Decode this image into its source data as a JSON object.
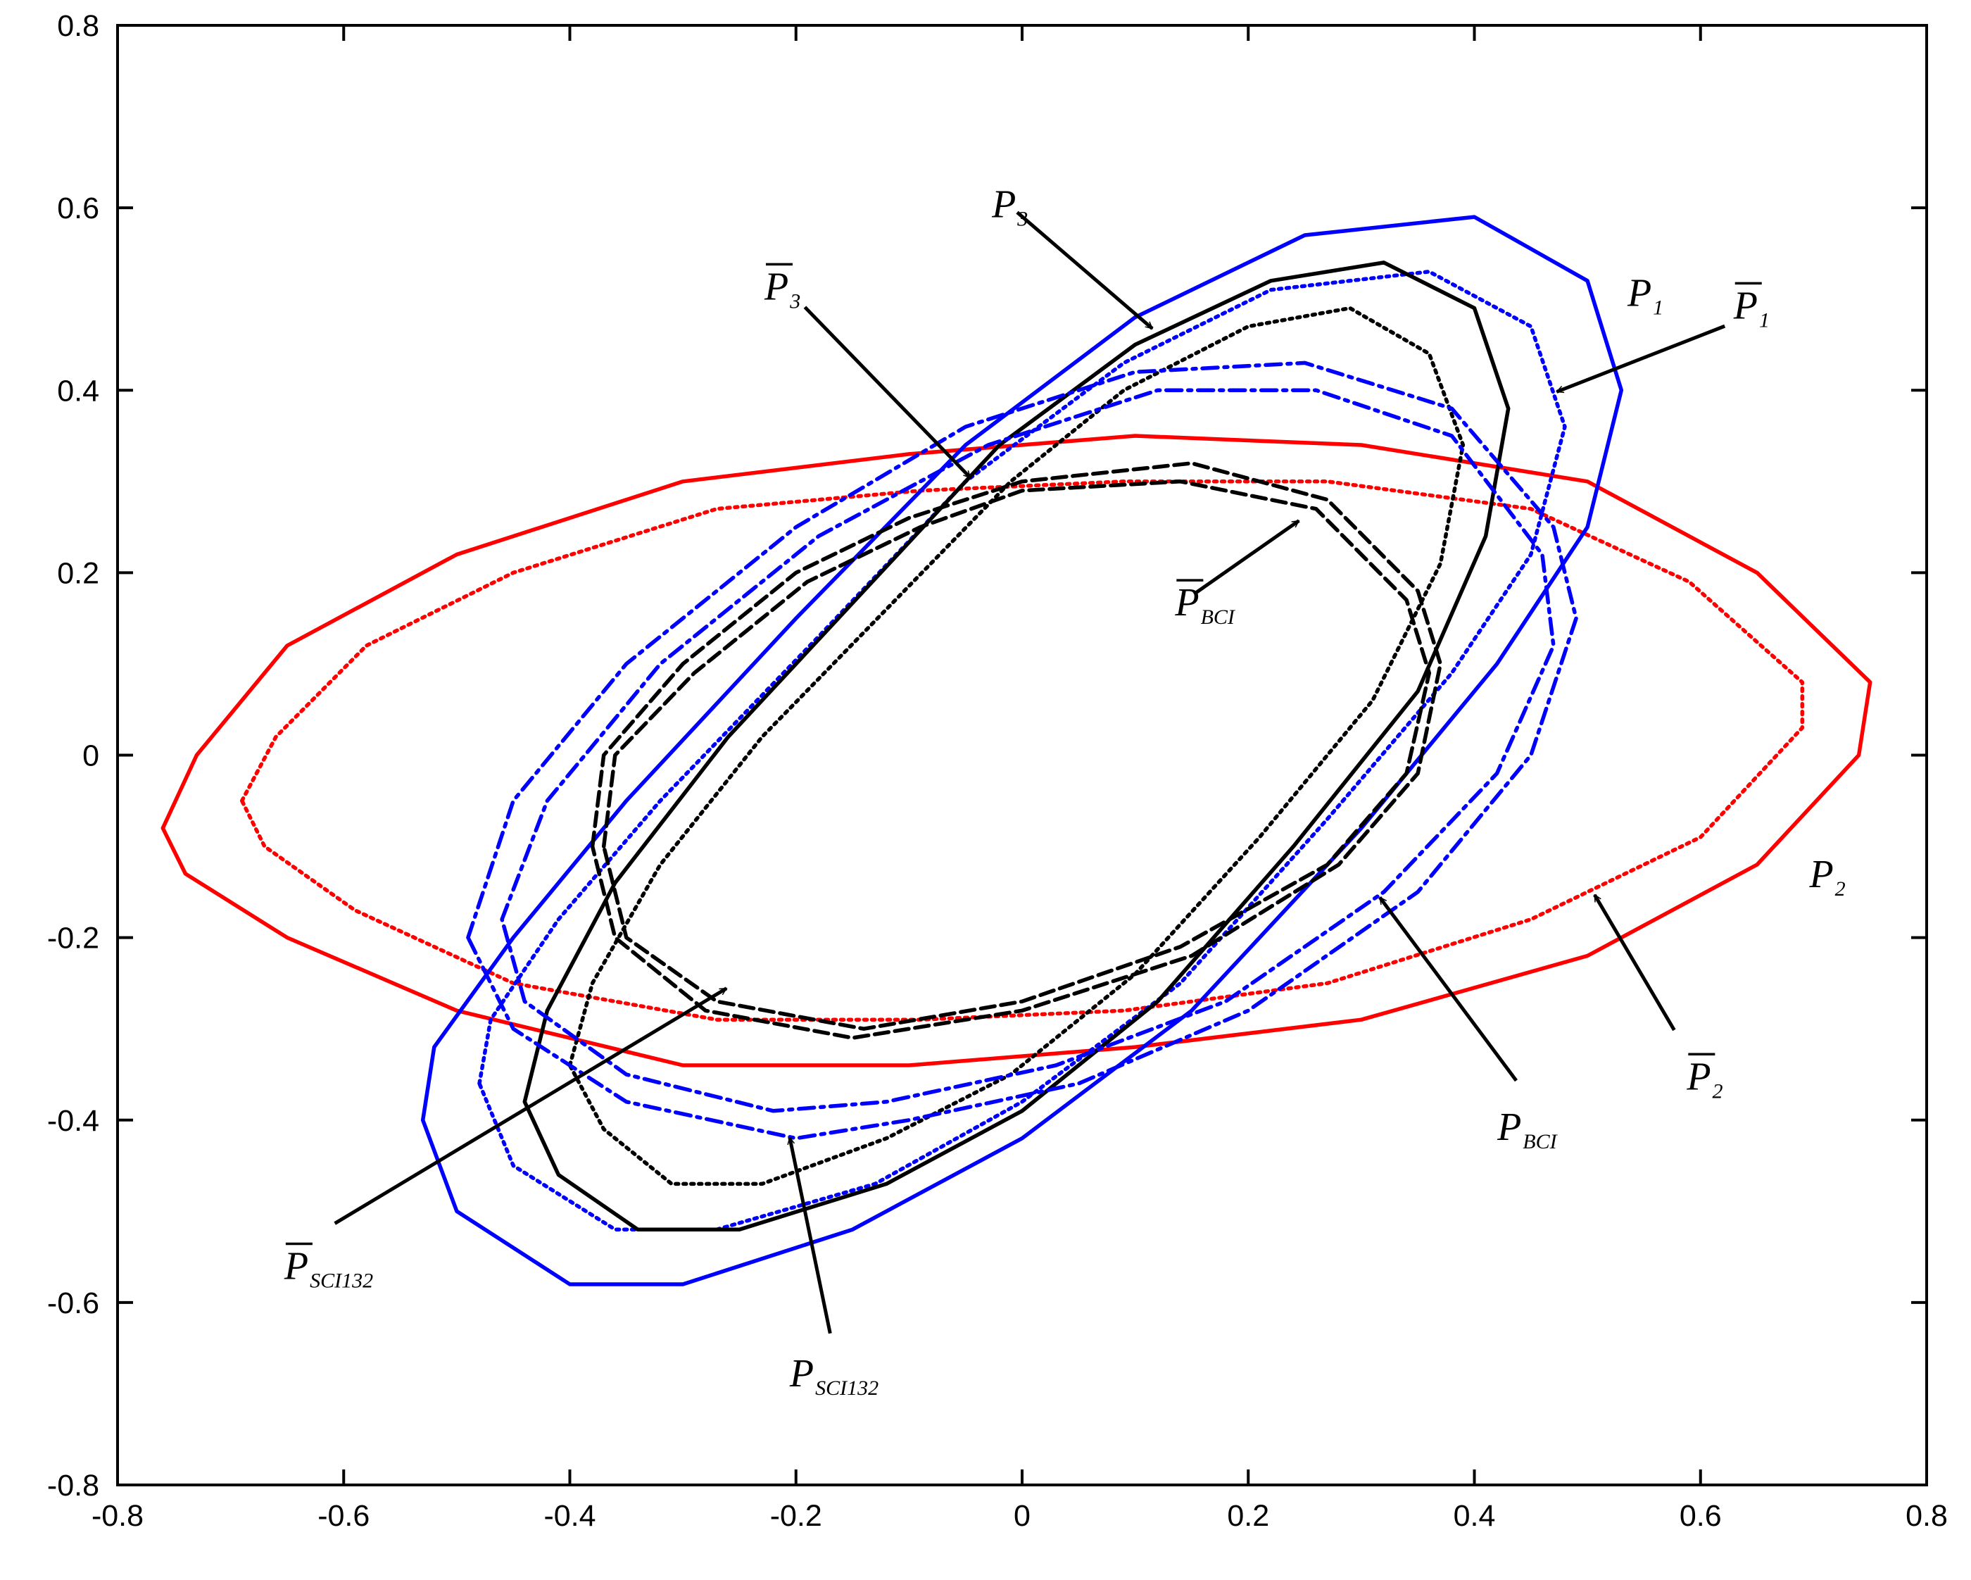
{
  "chart_data": {
    "type": "line",
    "xlim": [
      -0.8,
      0.8
    ],
    "ylim": [
      -0.8,
      0.8
    ],
    "xticks": [
      -0.8,
      -0.6,
      -0.4,
      -0.2,
      0,
      0.2,
      0.4,
      0.6,
      0.8
    ],
    "yticks": [
      -0.8,
      -0.6,
      -0.4,
      -0.2,
      0,
      0.2,
      0.4,
      0.6,
      0.8
    ],
    "grid": false,
    "series": [
      {
        "color": "#ff0000",
        "dash": "solid",
        "x": [
          -0.76,
          -0.73,
          -0.65,
          -0.5,
          -0.3,
          -0.1,
          0.1,
          0.3,
          0.5,
          0.65,
          0.75,
          0.74,
          0.65,
          0.5,
          0.3,
          0.1,
          -0.1,
          -0.3,
          -0.5,
          -0.65,
          -0.74,
          -0.76
        ],
        "y": [
          -0.08,
          0.0,
          0.12,
          0.22,
          0.3,
          0.33,
          0.35,
          0.34,
          0.3,
          0.2,
          0.08,
          0.0,
          -0.12,
          -0.22,
          -0.29,
          -0.32,
          -0.34,
          -0.34,
          -0.28,
          -0.2,
          -0.13,
          -0.08
        ]
      },
      {
        "color": "#ff0000",
        "dash": "dotted",
        "x": [
          -0.69,
          -0.66,
          -0.58,
          -0.45,
          -0.27,
          -0.09,
          0.09,
          0.27,
          0.45,
          0.59,
          0.69,
          0.69,
          0.6,
          0.45,
          0.27,
          0.09,
          -0.09,
          -0.27,
          -0.45,
          -0.59,
          -0.67,
          -0.69
        ],
        "y": [
          -0.05,
          0.02,
          0.12,
          0.2,
          0.27,
          0.29,
          0.3,
          0.3,
          0.27,
          0.19,
          0.08,
          0.03,
          -0.09,
          -0.18,
          -0.25,
          -0.28,
          -0.29,
          -0.29,
          -0.25,
          -0.17,
          -0.1,
          -0.05
        ]
      },
      {
        "color": "#0000ff",
        "dash": "solid",
        "x": [
          -0.53,
          -0.52,
          -0.45,
          -0.35,
          -0.2,
          -0.05,
          0.1,
          0.25,
          0.4,
          0.5,
          0.53,
          0.5,
          0.42,
          0.3,
          0.15,
          0.0,
          -0.15,
          -0.3,
          -0.4,
          -0.5,
          -0.53
        ],
        "y": [
          -0.4,
          -0.32,
          -0.2,
          -0.05,
          0.15,
          0.34,
          0.48,
          0.57,
          0.59,
          0.52,
          0.4,
          0.25,
          0.1,
          -0.08,
          -0.28,
          -0.42,
          -0.52,
          -0.58,
          -0.58,
          -0.5,
          -0.4
        ]
      },
      {
        "color": "#0000ff",
        "dash": "dotted",
        "x": [
          -0.48,
          -0.47,
          -0.41,
          -0.32,
          -0.18,
          -0.05,
          0.09,
          0.22,
          0.36,
          0.45,
          0.48,
          0.45,
          0.38,
          0.27,
          0.14,
          0.0,
          -0.13,
          -0.27,
          -0.36,
          -0.45,
          -0.48
        ],
        "y": [
          -0.36,
          -0.29,
          -0.18,
          -0.05,
          0.13,
          0.3,
          0.43,
          0.51,
          0.53,
          0.47,
          0.36,
          0.22,
          0.09,
          -0.07,
          -0.25,
          -0.38,
          -0.47,
          -0.52,
          -0.52,
          -0.45,
          -0.36
        ]
      },
      {
        "color": "#000000",
        "dash": "solid",
        "x": [
          -0.44,
          -0.42,
          -0.36,
          -0.26,
          -0.14,
          -0.02,
          0.1,
          0.22,
          0.32,
          0.4,
          0.43,
          0.41,
          0.35,
          0.24,
          0.12,
          0.0,
          -0.12,
          -0.25,
          -0.34,
          -0.41,
          -0.44
        ],
        "y": [
          -0.38,
          -0.28,
          -0.14,
          0.02,
          0.18,
          0.34,
          0.45,
          0.52,
          0.54,
          0.49,
          0.38,
          0.24,
          0.07,
          -0.1,
          -0.27,
          -0.39,
          -0.47,
          -0.52,
          -0.52,
          -0.46,
          -0.38
        ]
      },
      {
        "color": "#000000",
        "dash": "dotted",
        "x": [
          -0.4,
          -0.38,
          -0.32,
          -0.23,
          -0.12,
          -0.01,
          0.09,
          0.2,
          0.29,
          0.36,
          0.39,
          0.37,
          0.31,
          0.21,
          0.1,
          -0.01,
          -0.12,
          -0.23,
          -0.31,
          -0.37,
          -0.4
        ],
        "y": [
          -0.34,
          -0.25,
          -0.12,
          0.02,
          0.16,
          0.3,
          0.4,
          0.47,
          0.49,
          0.44,
          0.34,
          0.21,
          0.06,
          -0.09,
          -0.24,
          -0.35,
          -0.42,
          -0.47,
          -0.47,
          -0.41,
          -0.34
        ]
      },
      {
        "color": "#0000ff",
        "dash": "dashdot",
        "x": [
          -0.49,
          -0.45,
          -0.35,
          -0.2,
          -0.05,
          0.1,
          0.25,
          0.38,
          0.47,
          0.49,
          0.45,
          0.35,
          0.2,
          0.05,
          -0.1,
          -0.2,
          -0.35,
          -0.45,
          -0.49
        ],
        "y": [
          -0.2,
          -0.05,
          0.1,
          0.25,
          0.36,
          0.42,
          0.43,
          0.38,
          0.25,
          0.15,
          0.0,
          -0.15,
          -0.28,
          -0.36,
          -0.4,
          -0.42,
          -0.38,
          -0.3,
          -0.2
        ]
      },
      {
        "color": "#0000ff",
        "dash": "dashdot",
        "x": [
          -0.46,
          -0.42,
          -0.32,
          -0.18,
          -0.03,
          0.12,
          0.26,
          0.38,
          0.46,
          0.47,
          0.42,
          0.32,
          0.18,
          0.03,
          -0.12,
          -0.22,
          -0.35,
          -0.44,
          -0.46
        ],
        "y": [
          -0.18,
          -0.05,
          0.1,
          0.24,
          0.34,
          0.4,
          0.4,
          0.35,
          0.22,
          0.12,
          -0.02,
          -0.15,
          -0.27,
          -0.34,
          -0.38,
          -0.39,
          -0.35,
          -0.27,
          -0.18
        ]
      },
      {
        "color": "#000000",
        "dash": "dashed",
        "x": [
          -0.38,
          -0.37,
          -0.3,
          -0.2,
          -0.1,
          0.0,
          0.15,
          0.27,
          0.35,
          0.37,
          0.35,
          0.28,
          0.15,
          0.0,
          -0.15,
          -0.28,
          -0.36,
          -0.38
        ],
        "y": [
          -0.1,
          0.0,
          0.1,
          0.2,
          0.26,
          0.3,
          0.32,
          0.28,
          0.18,
          0.1,
          -0.02,
          -0.12,
          -0.22,
          -0.28,
          -0.31,
          -0.28,
          -0.2,
          -0.1
        ]
      },
      {
        "color": "#000000",
        "dash": "dashed",
        "x": [
          -0.37,
          -0.36,
          -0.29,
          -0.19,
          -0.09,
          0.0,
          0.14,
          0.26,
          0.34,
          0.36,
          0.34,
          0.27,
          0.14,
          0.0,
          -0.14,
          -0.27,
          -0.35,
          -0.37
        ],
        "y": [
          -0.1,
          0.0,
          0.09,
          0.19,
          0.25,
          0.29,
          0.3,
          0.27,
          0.17,
          0.09,
          -0.02,
          -0.12,
          -0.21,
          -0.27,
          -0.3,
          -0.27,
          -0.2,
          -0.1
        ]
      }
    ],
    "annotations": [
      {
        "text": "P",
        "subscript": "3",
        "overline": false
      },
      {
        "text": "P",
        "subscript": "3",
        "overline": true
      },
      {
        "text": "P",
        "subscript": "1",
        "overline": false
      },
      {
        "text": "P",
        "subscript": "1",
        "overline": true
      },
      {
        "text": "P",
        "subscript": "BCI",
        "overline": true
      },
      {
        "text": "P",
        "subscript": "2",
        "overline": false
      },
      {
        "text": "P",
        "subscript": "2",
        "overline": true
      },
      {
        "text": "P",
        "subscript": "BCI",
        "overline": false
      },
      {
        "text": "P",
        "subscript": "SCI132",
        "overline": true
      },
      {
        "text": "P",
        "subscript": "SCI132",
        "overline": false
      }
    ]
  }
}
